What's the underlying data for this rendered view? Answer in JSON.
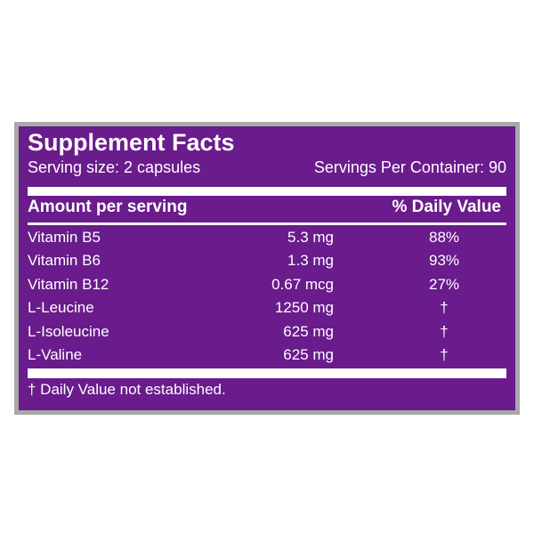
{
  "label": {
    "title": "Supplement Facts",
    "serving_size": "Serving size: 2 capsules",
    "servings_per_container": "Servings Per Container: 90",
    "header_amount": "Amount per serving",
    "header_daily_value": "% Daily Value",
    "nutrients": [
      {
        "name": "Vitamin B5",
        "amount": "5.3 mg",
        "dv": "88%"
      },
      {
        "name": "Vitamin B6",
        "amount": "1.3 mg",
        "dv": "93%"
      },
      {
        "name": "Vitamin B12",
        "amount": "0.67 mcg",
        "dv": "27%"
      },
      {
        "name": "L-Leucine",
        "amount": "1250 mg",
        "dv": "†"
      },
      {
        "name": "L-Isoleucine",
        "amount": "625 mg",
        "dv": "†"
      },
      {
        "name": "L-Valine",
        "amount": "625 mg",
        "dv": "†"
      }
    ],
    "footnote": "† Daily Value not established."
  },
  "colors": {
    "panel": "#6a1b8c",
    "frame": "#a8a8a8",
    "text": "#ffffff"
  }
}
